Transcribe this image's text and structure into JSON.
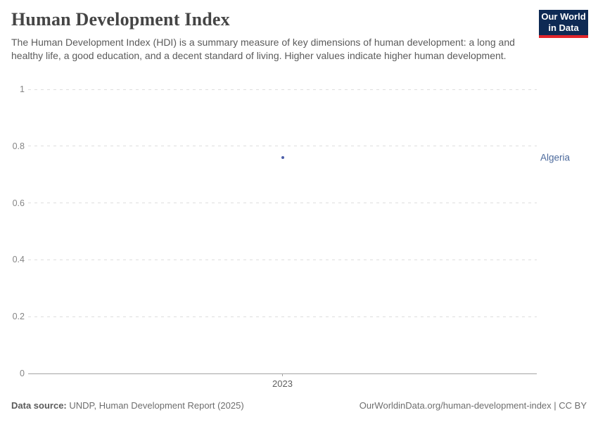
{
  "header": {
    "title": "Human Development Index",
    "subtitle": "The Human Development Index (HDI) is a summary measure of key dimensions of human development: a long and healthy life, a good education, and a decent standard of living. Higher values indicate higher human development.",
    "logo": {
      "line1": "Our World",
      "line2": "in Data",
      "bg_color": "#0e2a54",
      "accent_color": "#e2252b"
    }
  },
  "chart_data": {
    "type": "scatter",
    "title": "Human Development Index",
    "x": [
      2023
    ],
    "x_tick_labels": [
      "2023"
    ],
    "series": [
      {
        "name": "Algeria",
        "values": [
          0.76
        ],
        "color": "#4c5ea9"
      }
    ],
    "entity_label": "Algeria",
    "entity_label_color": "#4c6a9c",
    "xlabel": "",
    "ylabel": "",
    "ylim": [
      0,
      1
    ],
    "y_ticks": [
      0,
      0.2,
      0.4,
      0.6,
      0.8,
      1
    ],
    "y_tick_labels": [
      "0",
      "0.2",
      "0.4",
      "0.6",
      "0.8",
      "1"
    ],
    "grid": true,
    "grid_style": "dashed",
    "legend_position": "right-entity-label"
  },
  "footer": {
    "source_label": "Data source:",
    "source_text": " UNDP, Human Development Report (2025)",
    "link_text": "OurWorldinData.org/human-development-index | CC BY"
  }
}
